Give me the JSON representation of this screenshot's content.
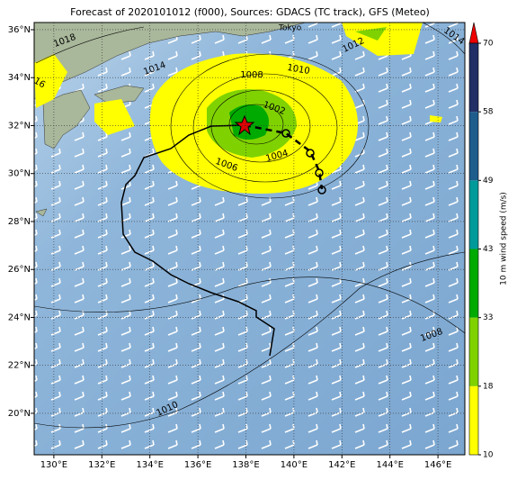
{
  "title": "Forecast of 2020101012 (f000), Sources: GDACS (TC track), GFS (Meteo)",
  "map": {
    "xlim": [
      129.18,
      147.12
    ],
    "ylim": [
      18.27,
      36.3
    ],
    "xticks": [
      {
        "value": 130,
        "label": "130°E"
      },
      {
        "value": 132,
        "label": "132°E"
      },
      {
        "value": 134,
        "label": "134°E"
      },
      {
        "value": 136,
        "label": "136°E"
      },
      {
        "value": 138,
        "label": "138°E"
      },
      {
        "value": 140,
        "label": "140°E"
      },
      {
        "value": 142,
        "label": "142°E"
      },
      {
        "value": 144,
        "label": "144°E"
      },
      {
        "value": 146,
        "label": "146°E"
      }
    ],
    "yticks": [
      {
        "value": 20,
        "label": "20°N"
      },
      {
        "value": 22,
        "label": "22°N"
      },
      {
        "value": 24,
        "label": "24°N"
      },
      {
        "value": 26,
        "label": "26°N"
      },
      {
        "value": 28,
        "label": "28°N"
      },
      {
        "value": 30,
        "label": "30°N"
      },
      {
        "value": 32,
        "label": "32°N"
      },
      {
        "value": 34,
        "label": "34°N"
      },
      {
        "value": 36,
        "label": "36°N"
      }
    ],
    "grid": true,
    "place_label": "Tokyo",
    "contour_labels": [
      "1018",
      "1014",
      "16",
      "1008",
      "1010",
      "1012",
      "1014",
      "1002",
      "1004",
      "1006",
      "1008",
      "1010"
    ]
  },
  "colorbar": {
    "label": "10 m wind speed (m/s)",
    "ticks": [
      10,
      18,
      33,
      43,
      49,
      58,
      70
    ],
    "colors": [
      "#ffff00",
      "#7fd200",
      "#00aa00",
      "#009a9a",
      "#1e5c8c",
      "#222f66"
    ],
    "extend_color": "#ee0000"
  }
}
